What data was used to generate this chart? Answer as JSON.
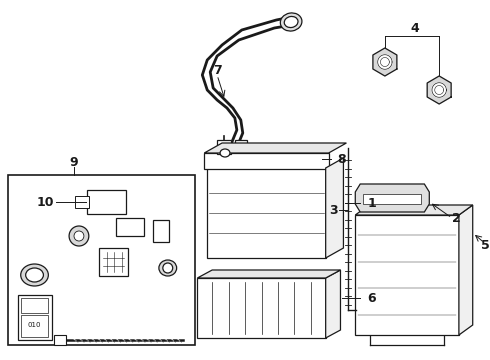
{
  "bg_color": "#ffffff",
  "line_color": "#1a1a1a",
  "fig_width": 4.9,
  "fig_height": 3.6,
  "dpi": 100,
  "cable7_color": "#333333",
  "cable_lw": 2.0,
  "part_lw": 0.9
}
